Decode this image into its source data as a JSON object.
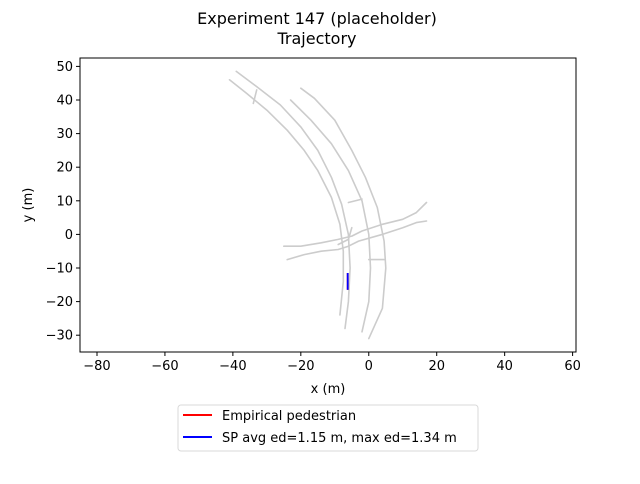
{
  "chart_data": {
    "type": "line",
    "title": "Experiment 147 (placeholder)",
    "subtitle": "Trajectory",
    "xlabel": "x (m)",
    "ylabel": "y (m)",
    "xlim": [
      -85,
      61
    ],
    "ylim": [
      -35,
      52.5
    ],
    "xticks": [
      -80,
      -60,
      -40,
      -20,
      0,
      20,
      40,
      60
    ],
    "yticks": [
      -30,
      -20,
      -10,
      0,
      10,
      20,
      30,
      40,
      50
    ],
    "xtick_labels": [
      "−80",
      "−60",
      "−40",
      "−20",
      "0",
      "20",
      "40",
      "60"
    ],
    "ytick_labels": [
      "−30",
      "−20",
      "−10",
      "0",
      "10",
      "20",
      "30",
      "40",
      "50"
    ],
    "grid": false,
    "legend_position": "below",
    "map_color": "#cccccc",
    "map_lines": [
      [
        [
          -41,
          46
        ],
        [
          -36,
          42
        ],
        [
          -30,
          37
        ],
        [
          -24,
          31
        ],
        [
          -19,
          25
        ],
        [
          -15,
          19
        ],
        [
          -11,
          11
        ],
        [
          -8.5,
          3
        ],
        [
          -7.5,
          -5
        ],
        [
          -7.5,
          -14
        ],
        [
          -8.5,
          -24
        ]
      ],
      [
        [
          -39,
          48.5
        ],
        [
          -33,
          44
        ],
        [
          -26,
          38.5
        ],
        [
          -20,
          32
        ],
        [
          -15,
          25
        ],
        [
          -11,
          17
        ],
        [
          -8,
          9
        ],
        [
          -6,
          0
        ],
        [
          -5.5,
          -10
        ],
        [
          -6,
          -20
        ],
        [
          -7,
          -28
        ]
      ],
      [
        [
          -34,
          39
        ],
        [
          -33,
          43
        ]
      ],
      [
        [
          -23,
          40
        ],
        [
          -17,
          34
        ],
        [
          -11,
          27
        ],
        [
          -6,
          19
        ],
        [
          -2,
          10
        ],
        [
          0,
          0
        ],
        [
          0.5,
          -10
        ],
        [
          0,
          -20
        ],
        [
          -2,
          -29
        ]
      ],
      [
        [
          -20,
          43.5
        ],
        [
          -16,
          40.5
        ],
        [
          -10,
          34
        ],
        [
          -5,
          25
        ],
        [
          -1,
          17
        ],
        [
          2.5,
          8
        ],
        [
          4.5,
          -2
        ],
        [
          5,
          -10
        ],
        [
          4,
          -22
        ],
        [
          0,
          -31
        ]
      ],
      [
        [
          -6,
          9.5
        ],
        [
          -2,
          10.5
        ]
      ],
      [
        [
          0,
          -7.5
        ],
        [
          4.5,
          -7.5
        ]
      ],
      [
        [
          -25,
          -3.5
        ],
        [
          -20,
          -3.5
        ],
        [
          -14,
          -2.5
        ],
        [
          -9,
          -1.5
        ],
        [
          -5,
          -0.5
        ],
        [
          -2,
          1
        ],
        [
          4,
          3
        ],
        [
          10,
          4.5
        ],
        [
          14,
          6.5
        ],
        [
          17,
          9.5
        ]
      ],
      [
        [
          -24,
          -7.5
        ],
        [
          -19,
          -6
        ],
        [
          -14,
          -5
        ],
        [
          -9,
          -4.5
        ],
        [
          -6,
          -3.5
        ],
        [
          -3,
          -2
        ],
        [
          4,
          0
        ],
        [
          10,
          2
        ],
        [
          14,
          3.5
        ],
        [
          17,
          4
        ]
      ],
      [
        [
          -9,
          -3
        ],
        [
          -6,
          -1.5
        ],
        [
          -5,
          2
        ]
      ]
    ],
    "series": [
      {
        "name": "Empirical pedestrian",
        "color": "#ff0000",
        "x": [
          -6.2,
          -6.2
        ],
        "y": [
          -11.5,
          -16.5
        ]
      },
      {
        "name": "SP avg ed=1.15 m, max ed=1.34 m",
        "color": "#0000ff",
        "x": [
          -6.2,
          -6.2
        ],
        "y": [
          -11.5,
          -16.5
        ]
      }
    ]
  }
}
